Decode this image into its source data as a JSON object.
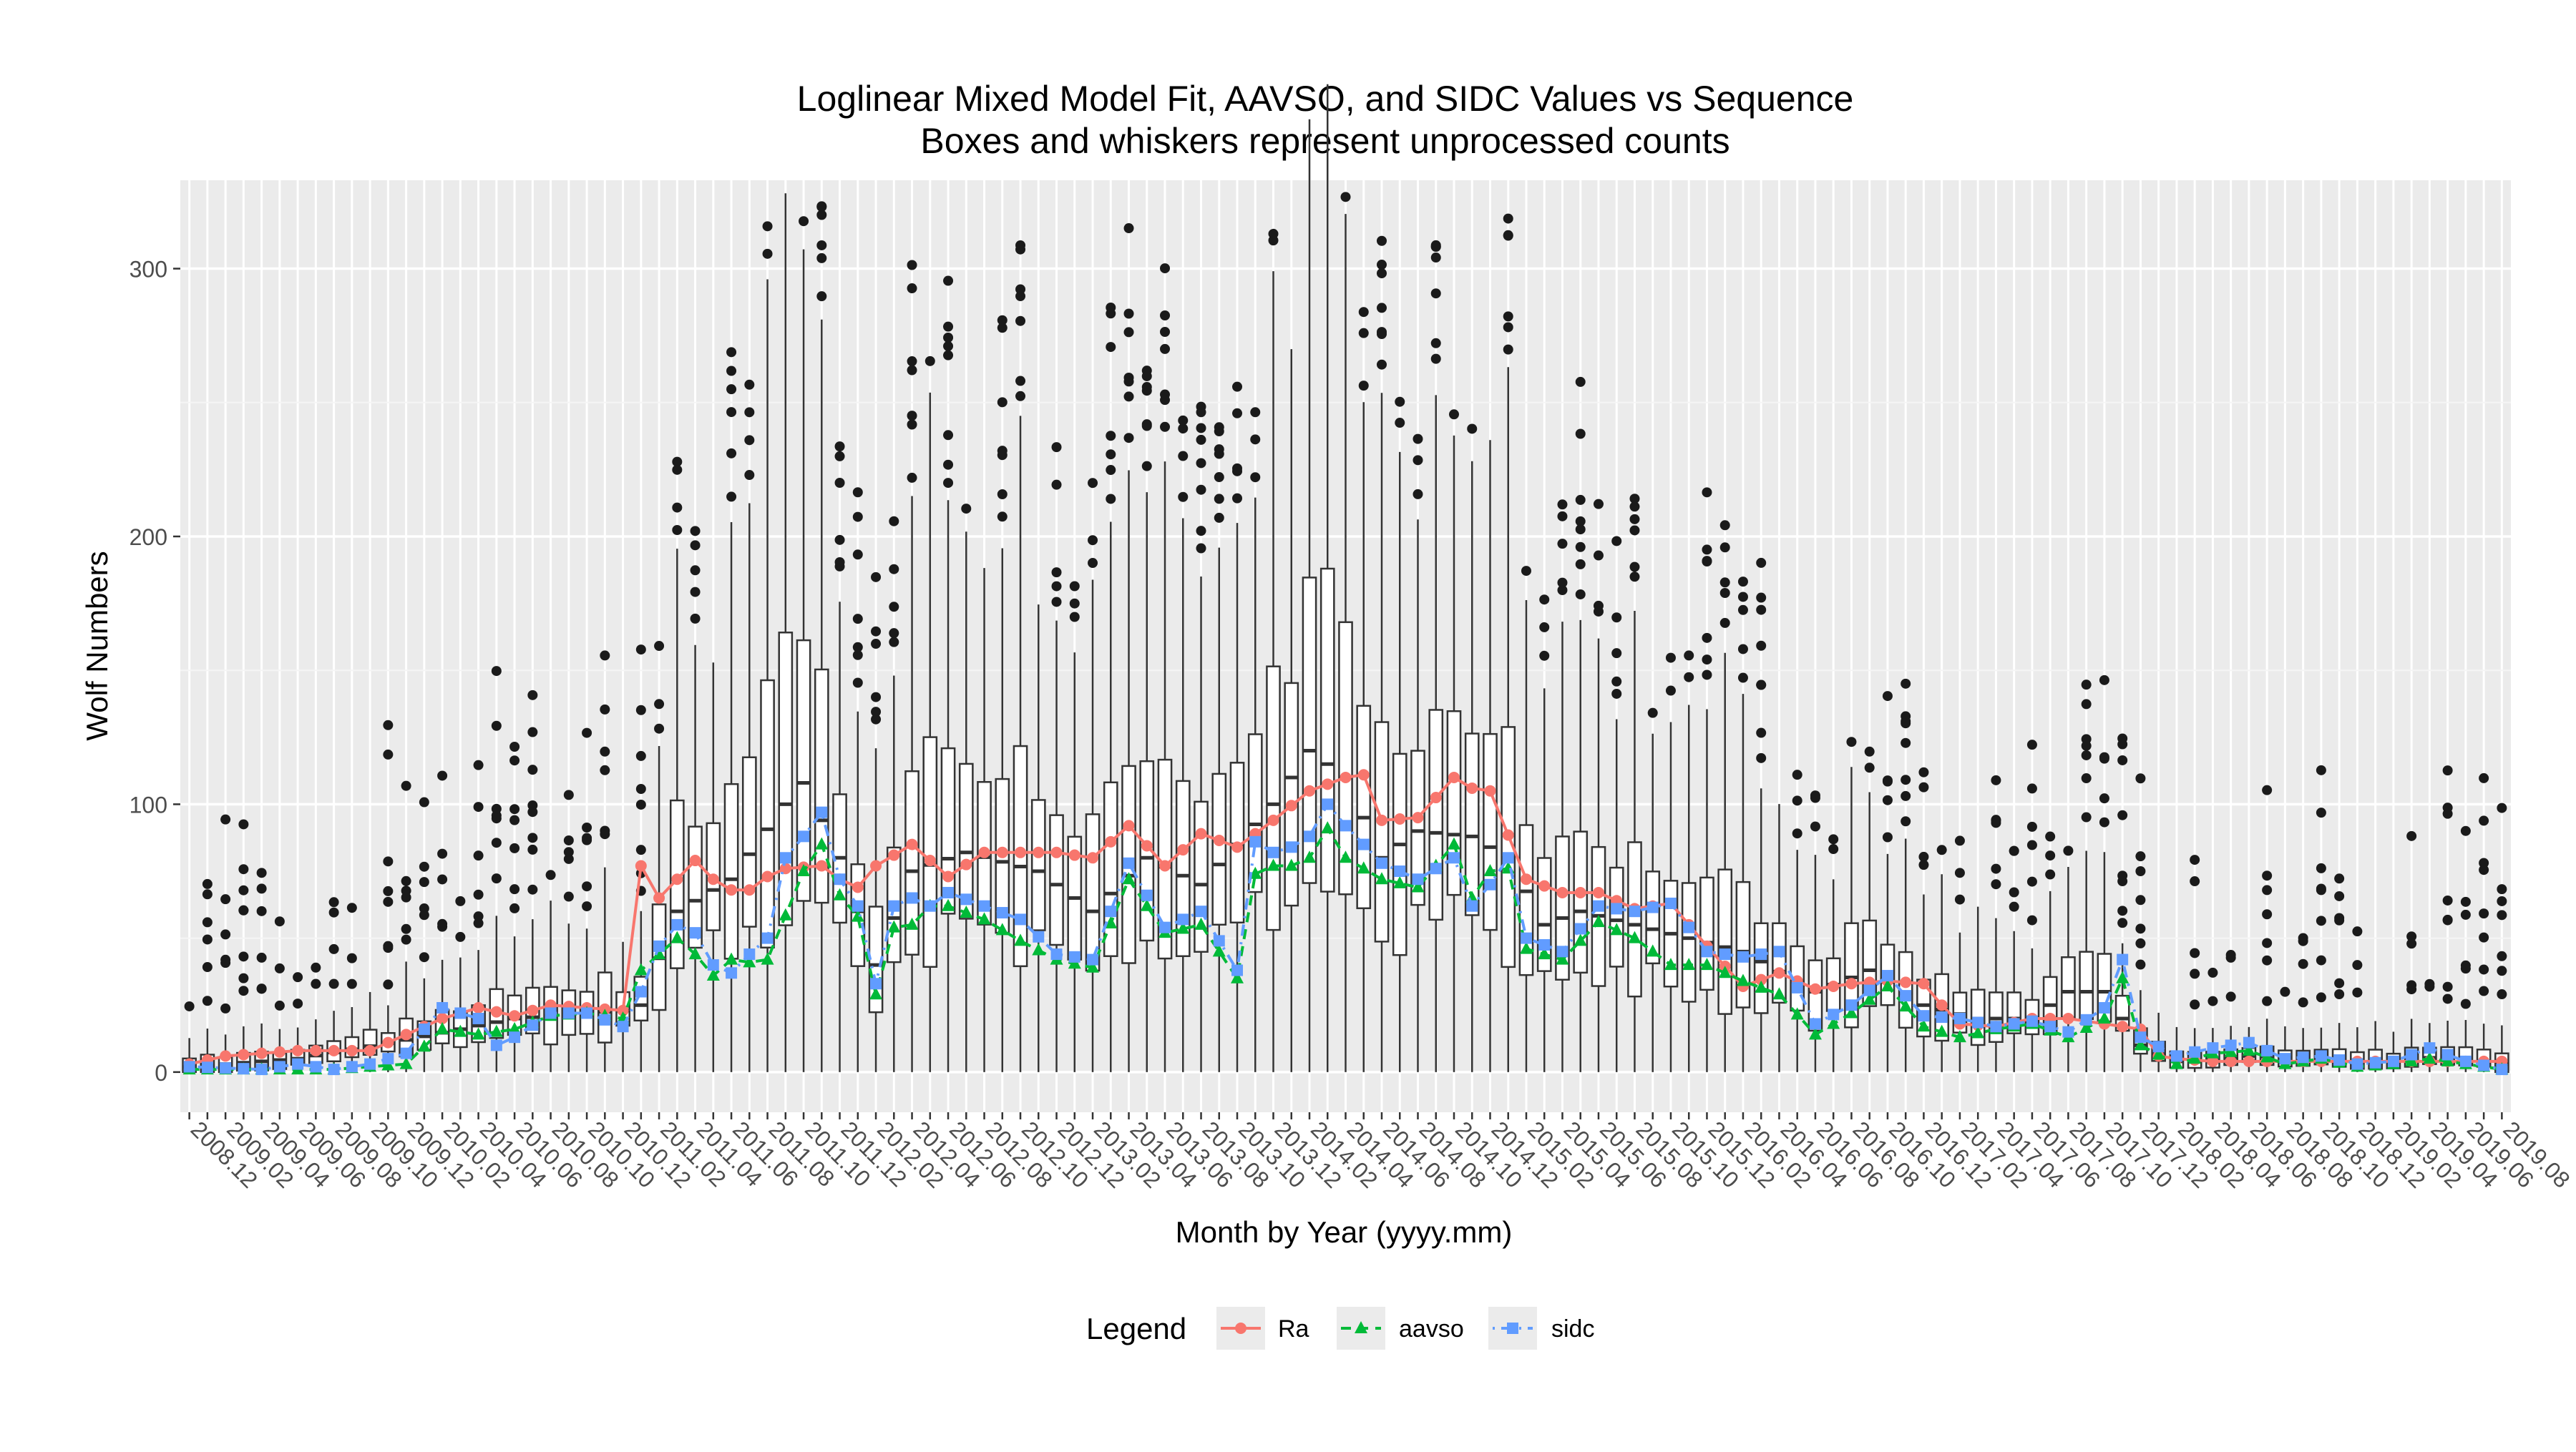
{
  "chart_data": {
    "type": "box",
    "title": "Loglinear Mixed Model Fit, AAVSO, and SIDC Values vs Sequence",
    "subtitle": "Boxes and whiskers represent unprocessed counts",
    "xlabel": "Month by Year (yyyy.mm)",
    "ylabel": "Wolf Numbers",
    "ylim": [
      -15,
      333
    ],
    "yticks": [
      0,
      100,
      200,
      300
    ],
    "grid": true,
    "legend": {
      "title": "Legend",
      "position": "bottom"
    },
    "x": [
      "2008.12",
      "2009.01",
      "2009.02",
      "2009.03",
      "2009.04",
      "2009.05",
      "2009.06",
      "2009.07",
      "2009.08",
      "2009.09",
      "2009.10",
      "2009.11",
      "2009.12",
      "2010.01",
      "2010.02",
      "2010.03",
      "2010.04",
      "2010.05",
      "2010.06",
      "2010.07",
      "2010.08",
      "2010.09",
      "2010.10",
      "2010.11",
      "2010.12",
      "2011.01",
      "2011.02",
      "2011.03",
      "2011.04",
      "2011.05",
      "2011.06",
      "2011.07",
      "2011.08",
      "2011.09",
      "2011.10",
      "2011.11",
      "2011.12",
      "2012.01",
      "2012.02",
      "2012.03",
      "2012.04",
      "2012.05",
      "2012.06",
      "2012.07",
      "2012.08",
      "2012.09",
      "2012.10",
      "2012.11",
      "2012.12",
      "2013.01",
      "2013.02",
      "2013.03",
      "2013.04",
      "2013.05",
      "2013.06",
      "2013.07",
      "2013.08",
      "2013.09",
      "2013.10",
      "2013.11",
      "2013.12",
      "2014.01",
      "2014.02",
      "2014.03",
      "2014.04",
      "2014.05",
      "2014.06",
      "2014.07",
      "2014.08",
      "2014.09",
      "2014.10",
      "2014.11",
      "2014.12",
      "2015.01",
      "2015.02",
      "2015.03",
      "2015.04",
      "2015.05",
      "2015.06",
      "2015.07",
      "2015.08",
      "2015.09",
      "2015.10",
      "2015.11",
      "2015.12",
      "2016.01",
      "2016.02",
      "2016.03",
      "2016.04",
      "2016.05",
      "2016.06",
      "2016.07",
      "2016.08",
      "2016.09",
      "2016.10",
      "2016.11",
      "2016.12",
      "2017.01",
      "2017.02",
      "2017.03",
      "2017.04",
      "2017.05",
      "2017.06",
      "2017.07",
      "2017.08",
      "2017.09",
      "2017.10",
      "2017.11",
      "2017.12",
      "2018.01",
      "2018.02",
      "2018.03",
      "2018.04",
      "2018.05",
      "2018.06",
      "2018.07",
      "2018.08",
      "2018.09",
      "2018.10",
      "2018.11",
      "2018.12",
      "2019.01",
      "2019.02",
      "2019.03",
      "2019.04",
      "2019.05",
      "2019.06",
      "2019.07",
      "2019.08"
    ],
    "xtick_labels": [
      "2008.12",
      "2009.02",
      "2009.04",
      "2009.06",
      "2009.08",
      "2009.10",
      "2009.12",
      "2010.02",
      "2010.04",
      "2010.06",
      "2010.08",
      "2010.10",
      "2010.12",
      "2011.02",
      "2011.04",
      "2011.06",
      "2011.08",
      "2011.10",
      "2011.12",
      "2012.02",
      "2012.04",
      "2012.06",
      "2012.08",
      "2012.10",
      "2012.12",
      "2013.02",
      "2013.04",
      "2013.06",
      "2013.08",
      "2013.10",
      "2013.12",
      "2014.02",
      "2014.04",
      "2014.06",
      "2014.08",
      "2014.10",
      "2014.12",
      "2015.02",
      "2015.04",
      "2015.06",
      "2015.08",
      "2015.10",
      "2015.12",
      "2016.02",
      "2016.04",
      "2016.06",
      "2016.08",
      "2016.10",
      "2016.12",
      "2017.02",
      "2017.04",
      "2017.06",
      "2017.08",
      "2017.10",
      "2017.12",
      "2018.02",
      "2018.04",
      "2018.06",
      "2018.08",
      "2018.10",
      "2018.12",
      "2019.02",
      "2019.04",
      "2019.06",
      "2019.08"
    ],
    "anchors": {
      "ra": [
        [
          0,
          3
        ],
        [
          2,
          6
        ],
        [
          4,
          7
        ],
        [
          6,
          8
        ],
        [
          8,
          8
        ],
        [
          10,
          8
        ],
        [
          12,
          14
        ],
        [
          14,
          20
        ],
        [
          16,
          24
        ],
        [
          18,
          21
        ],
        [
          20,
          25
        ],
        [
          22,
          24
        ],
        [
          24,
          23
        ],
        [
          25,
          77
        ],
        [
          26,
          65
        ],
        [
          27,
          72
        ],
        [
          28,
          79
        ],
        [
          29,
          72
        ],
        [
          30,
          68
        ],
        [
          31,
          68
        ],
        [
          32,
          73
        ],
        [
          33,
          76
        ],
        [
          35,
          77
        ],
        [
          36,
          72
        ],
        [
          37,
          69
        ],
        [
          38,
          77
        ],
        [
          40,
          85
        ],
        [
          42,
          73
        ],
        [
          44,
          82
        ],
        [
          46,
          82
        ],
        [
          48,
          82
        ],
        [
          50,
          80
        ],
        [
          52,
          92
        ],
        [
          54,
          77
        ],
        [
          56,
          89
        ],
        [
          58,
          84
        ],
        [
          60,
          94
        ],
        [
          62,
          105
        ],
        [
          64,
          110
        ],
        [
          65,
          111
        ],
        [
          66,
          94
        ],
        [
          68,
          95
        ],
        [
          70,
          110
        ],
        [
          71,
          106
        ],
        [
          72,
          105
        ],
        [
          74,
          72
        ],
        [
          76,
          67
        ],
        [
          78,
          67
        ],
        [
          80,
          61
        ],
        [
          82,
          63
        ],
        [
          84,
          47
        ],
        [
          86,
          32
        ],
        [
          88,
          37
        ],
        [
          90,
          31
        ],
        [
          92,
          33
        ],
        [
          94,
          34
        ],
        [
          96,
          33
        ],
        [
          97,
          25
        ],
        [
          98,
          18
        ],
        [
          100,
          17
        ],
        [
          102,
          20
        ],
        [
          104,
          20
        ],
        [
          106,
          18
        ],
        [
          108,
          16
        ],
        [
          109,
          6
        ],
        [
          110,
          5
        ],
        [
          112,
          4
        ],
        [
          114,
          4
        ],
        [
          116,
          4
        ],
        [
          118,
          4
        ],
        [
          120,
          4
        ],
        [
          122,
          4
        ],
        [
          124,
          4
        ],
        [
          126,
          4
        ],
        [
          128,
          4
        ]
      ],
      "aavso": [
        [
          0,
          1
        ],
        [
          4,
          1
        ],
        [
          8,
          1
        ],
        [
          12,
          3
        ],
        [
          14,
          16
        ],
        [
          16,
          14
        ],
        [
          18,
          16
        ],
        [
          20,
          21
        ],
        [
          22,
          22
        ],
        [
          24,
          20
        ],
        [
          25,
          38
        ],
        [
          26,
          44
        ],
        [
          27,
          50
        ],
        [
          28,
          44
        ],
        [
          29,
          36
        ],
        [
          30,
          42
        ],
        [
          31,
          41
        ],
        [
          32,
          42
        ],
        [
          34,
          75
        ],
        [
          35,
          85
        ],
        [
          36,
          66
        ],
        [
          37,
          58
        ],
        [
          38,
          29
        ],
        [
          39,
          54
        ],
        [
          40,
          55
        ],
        [
          41,
          62
        ],
        [
          42,
          62
        ],
        [
          44,
          57
        ],
        [
          46,
          49
        ],
        [
          48,
          42
        ],
        [
          50,
          39
        ],
        [
          52,
          72
        ],
        [
          54,
          52
        ],
        [
          56,
          55
        ],
        [
          58,
          35
        ],
        [
          59,
          74
        ],
        [
          60,
          77
        ],
        [
          61,
          77
        ],
        [
          62,
          80
        ],
        [
          63,
          91
        ],
        [
          64,
          80
        ],
        [
          66,
          72
        ],
        [
          68,
          69
        ],
        [
          70,
          85
        ],
        [
          71,
          65
        ],
        [
          72,
          75
        ],
        [
          73,
          76
        ],
        [
          74,
          46
        ],
        [
          76,
          42
        ],
        [
          78,
          56
        ],
        [
          80,
          50
        ],
        [
          82,
          40
        ],
        [
          84,
          40
        ],
        [
          86,
          34
        ],
        [
          88,
          29
        ],
        [
          90,
          14
        ],
        [
          92,
          22
        ],
        [
          94,
          32
        ],
        [
          96,
          17
        ],
        [
          98,
          13
        ],
        [
          100,
          16
        ],
        [
          102,
          18
        ],
        [
          104,
          13
        ],
        [
          106,
          20
        ],
        [
          107,
          35
        ],
        [
          108,
          10
        ],
        [
          110,
          3
        ],
        [
          112,
          7
        ],
        [
          114,
          8
        ],
        [
          116,
          3
        ],
        [
          118,
          5
        ],
        [
          120,
          2
        ],
        [
          122,
          3
        ],
        [
          124,
          5
        ],
        [
          126,
          3
        ],
        [
          128,
          1
        ]
      ],
      "sidc": [
        [
          0,
          2
        ],
        [
          4,
          1
        ],
        [
          6,
          3
        ],
        [
          8,
          1
        ],
        [
          10,
          3
        ],
        [
          12,
          7
        ],
        [
          13,
          16
        ],
        [
          14,
          24
        ],
        [
          16,
          20
        ],
        [
          17,
          10
        ],
        [
          18,
          13
        ],
        [
          20,
          22
        ],
        [
          22,
          22
        ],
        [
          24,
          17
        ],
        [
          25,
          30
        ],
        [
          26,
          47
        ],
        [
          27,
          55
        ],
        [
          28,
          52
        ],
        [
          29,
          40
        ],
        [
          30,
          37
        ],
        [
          31,
          44
        ],
        [
          32,
          50
        ],
        [
          33,
          80
        ],
        [
          34,
          88
        ],
        [
          35,
          97
        ],
        [
          36,
          72
        ],
        [
          37,
          62
        ],
        [
          38,
          33
        ],
        [
          39,
          62
        ],
        [
          40,
          65
        ],
        [
          41,
          62
        ],
        [
          42,
          67
        ],
        [
          44,
          62
        ],
        [
          46,
          57
        ],
        [
          48,
          44
        ],
        [
          50,
          42
        ],
        [
          52,
          78
        ],
        [
          54,
          54
        ],
        [
          56,
          60
        ],
        [
          58,
          38
        ],
        [
          59,
          86
        ],
        [
          60,
          82
        ],
        [
          61,
          84
        ],
        [
          62,
          88
        ],
        [
          63,
          100
        ],
        [
          64,
          92
        ],
        [
          66,
          78
        ],
        [
          68,
          72
        ],
        [
          70,
          80
        ],
        [
          71,
          62
        ],
        [
          72,
          70
        ],
        [
          73,
          80
        ],
        [
          74,
          50
        ],
        [
          76,
          45
        ],
        [
          78,
          62
        ],
        [
          80,
          60
        ],
        [
          82,
          63
        ],
        [
          84,
          45
        ],
        [
          86,
          43
        ],
        [
          88,
          45
        ],
        [
          90,
          18
        ],
        [
          92,
          25
        ],
        [
          94,
          36
        ],
        [
          96,
          21
        ],
        [
          98,
          20
        ],
        [
          100,
          17
        ],
        [
          102,
          19
        ],
        [
          104,
          15
        ],
        [
          106,
          24
        ],
        [
          107,
          42
        ],
        [
          108,
          13
        ],
        [
          110,
          6
        ],
        [
          112,
          9
        ],
        [
          114,
          11
        ],
        [
          116,
          5
        ],
        [
          118,
          6
        ],
        [
          120,
          3
        ],
        [
          122,
          4
        ],
        [
          124,
          9
        ],
        [
          126,
          4
        ],
        [
          128,
          1
        ]
      ],
      "median": [
        [
          0,
          2
        ],
        [
          6,
          5
        ],
        [
          12,
          12
        ],
        [
          18,
          20
        ],
        [
          24,
          23
        ],
        [
          25,
          25
        ],
        [
          27,
          60
        ],
        [
          30,
          72
        ],
        [
          33,
          100
        ],
        [
          34,
          108
        ],
        [
          36,
          80
        ],
        [
          38,
          40
        ],
        [
          40,
          75
        ],
        [
          43,
          82
        ],
        [
          47,
          75
        ],
        [
          50,
          60
        ],
        [
          53,
          80
        ],
        [
          56,
          70
        ],
        [
          60,
          100
        ],
        [
          62,
          120
        ],
        [
          64,
          110
        ],
        [
          66,
          80
        ],
        [
          68,
          90
        ],
        [
          71,
          88
        ],
        [
          73,
          80
        ],
        [
          75,
          55
        ],
        [
          77,
          60
        ],
        [
          80,
          55
        ],
        [
          83,
          50
        ],
        [
          86,
          45
        ],
        [
          90,
          30
        ],
        [
          93,
          38
        ],
        [
          96,
          25
        ],
        [
          99,
          20
        ],
        [
          102,
          20
        ],
        [
          104,
          30
        ],
        [
          106,
          30
        ],
        [
          108,
          10
        ],
        [
          110,
          4
        ],
        [
          114,
          6
        ],
        [
          118,
          5
        ],
        [
          122,
          4
        ],
        [
          125,
          6
        ],
        [
          128,
          3
        ]
      ]
    },
    "series": [
      {
        "name": "Ra",
        "color": "#F8766D",
        "linetype": "solid",
        "marker": "circle"
      },
      {
        "name": "aavso",
        "color": "#00BA38",
        "linetype": "dashed",
        "marker": "triangle"
      },
      {
        "name": "sidc",
        "color": "#619CFF",
        "linetype": "dotdash",
        "marker": "square"
      }
    ]
  }
}
